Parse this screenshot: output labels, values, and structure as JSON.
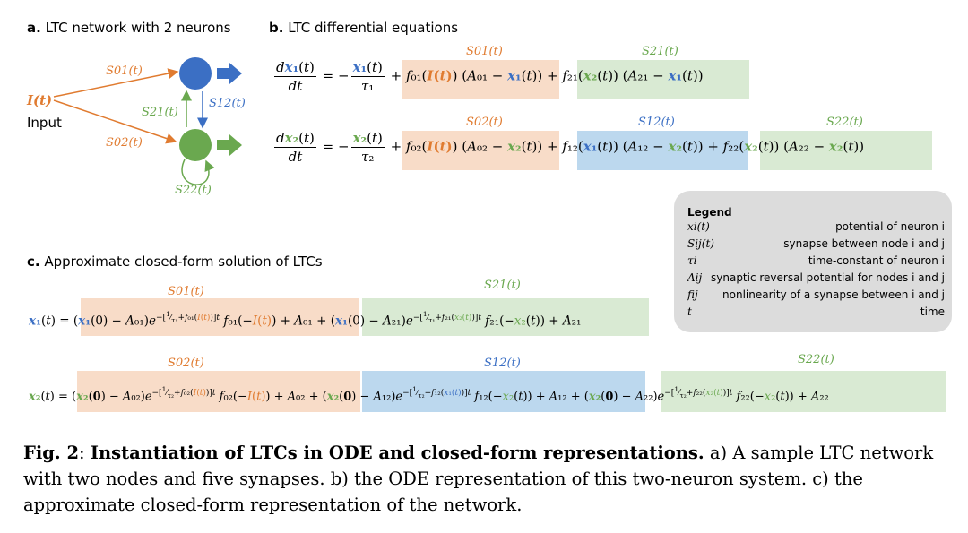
{
  "panel_a": {
    "heading_letter": "a.",
    "heading_text": "LTC network with 2 neurons",
    "input_symbol": "I(t)",
    "input_label": "Input",
    "s01": "S01(t)",
    "s02": "S02(t)",
    "s21": "S21(t)",
    "s12": "S12(t)",
    "s22": "S22(t)"
  },
  "panel_b": {
    "heading_letter": "b.",
    "heading_text": "LTC differential equations",
    "eq1_labels": {
      "s01": "S01(t)",
      "s21": "S21(t)"
    },
    "eq2_labels": {
      "s02": "S02(t)",
      "s12": "S12(t)",
      "s22": "S22(t)"
    }
  },
  "panel_c": {
    "heading_letter": "c.",
    "heading_text": "Approximate closed-form solution of LTCs",
    "eq1_labels": {
      "s01": "S01(t)",
      "s21": "S21(t)"
    },
    "eq2_labels": {
      "s02": "S02(t)",
      "s12": "S12(t)",
      "s22": "S22(t)"
    }
  },
  "legend": {
    "title": "Legend",
    "rows": [
      {
        "symbol": "xi(t)",
        "desc": "potential of neuron i"
      },
      {
        "symbol": "Sij(t)",
        "desc": "synapse between node i and j"
      },
      {
        "symbol": "τi",
        "desc": "time-constant of neuron i"
      },
      {
        "symbol": "Aij",
        "desc": "synaptic reversal potential for nodes i and j"
      },
      {
        "symbol": "fij",
        "desc": "nonlinearity of a synapse between i and j"
      },
      {
        "symbol": "t",
        "desc": "time"
      }
    ]
  },
  "caption": {
    "fig_label": "Fig. 2",
    "bold_title": "Instantiation of LTCs in ODE and closed-form representations.",
    "text": "a) A sample LTC network with two nodes and five synapses. b) the ODE representation of this two-neuron system. c) the approximate closed-form representation of the network."
  },
  "colors": {
    "orange": "#e07b30",
    "blue": "#3b6fc4",
    "green": "#6aa84f",
    "orange_bg": "#f8dcc8",
    "green_bg": "#d9ead3",
    "blue_bg": "#bcd8ee",
    "legend_bg": "#dcdcdc"
  }
}
